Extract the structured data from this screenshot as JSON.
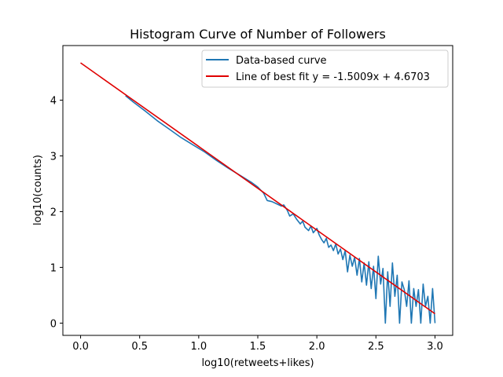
{
  "chart_data": {
    "type": "line",
    "title": "Histogram Curve of Number of Followers",
    "xlabel": "log10(retweets+likes)",
    "ylabel": "log10(counts)",
    "xlim": [
      -0.15,
      3.15
    ],
    "ylim": [
      -0.22,
      4.98
    ],
    "xticks": [
      0.0,
      0.5,
      1.0,
      1.5,
      2.0,
      2.5,
      3.0
    ],
    "xtick_labels": [
      "0.0",
      "0.5",
      "1.0",
      "1.5",
      "2.0",
      "2.5",
      "3.0"
    ],
    "yticks": [
      0,
      1,
      2,
      3,
      4
    ],
    "ytick_labels": [
      "0",
      "1",
      "2",
      "3",
      "4"
    ],
    "grid": false,
    "legend_position": "top-right",
    "series": [
      {
        "name": "Data-based curve",
        "color": "#1f77b4",
        "style": "line",
        "x": [
          0.38,
          0.45,
          0.55,
          0.65,
          0.75,
          0.85,
          0.95,
          1.05,
          1.15,
          1.25,
          1.35,
          1.45,
          1.5,
          1.55,
          1.58,
          1.62,
          1.66,
          1.7,
          1.72,
          1.75,
          1.77,
          1.8,
          1.83,
          1.86,
          1.88,
          1.9,
          1.93,
          1.95,
          1.97,
          2.0,
          2.02,
          2.04,
          2.06,
          2.08,
          2.1,
          2.12,
          2.14,
          2.16,
          2.18,
          2.2,
          2.22,
          2.24,
          2.26,
          2.28,
          2.3,
          2.32,
          2.34,
          2.36,
          2.38,
          2.4,
          2.42,
          2.44,
          2.46,
          2.48,
          2.5,
          2.52,
          2.54,
          2.56,
          2.58,
          2.6,
          2.62,
          2.64,
          2.66,
          2.68,
          2.7,
          2.72,
          2.74,
          2.76,
          2.78,
          2.8,
          2.82,
          2.84,
          2.86,
          2.88,
          2.9,
          2.92,
          2.94,
          2.96,
          2.98,
          3.0
        ],
        "y": [
          4.08,
          3.96,
          3.8,
          3.63,
          3.48,
          3.33,
          3.2,
          3.07,
          2.92,
          2.78,
          2.65,
          2.52,
          2.44,
          2.33,
          2.2,
          2.18,
          2.14,
          2.1,
          2.12,
          2.02,
          1.92,
          1.96,
          1.86,
          1.78,
          1.83,
          1.72,
          1.66,
          1.74,
          1.62,
          1.7,
          1.58,
          1.5,
          1.44,
          1.52,
          1.36,
          1.4,
          1.3,
          1.42,
          1.24,
          1.33,
          1.14,
          1.3,
          0.92,
          1.22,
          1.02,
          1.18,
          0.86,
          1.16,
          0.74,
          1.08,
          0.68,
          1.1,
          0.62,
          1.02,
          0.44,
          1.2,
          0.7,
          0.98,
          0.0,
          0.92,
          0.3,
          1.08,
          0.48,
          0.86,
          0.0,
          0.74,
          0.6,
          0.3,
          0.76,
          0.0,
          0.62,
          0.3,
          0.6,
          0.0,
          0.7,
          0.3,
          0.48,
          0.0,
          0.62,
          0.0
        ]
      },
      {
        "name": "Line of best fit y = -1.5009x + 4.6703",
        "color": "#e00000",
        "style": "line",
        "slope": -1.5009,
        "intercept": 4.6703,
        "x": [
          0.0,
          3.0
        ],
        "y": [
          4.6703,
          0.1676
        ]
      }
    ]
  }
}
